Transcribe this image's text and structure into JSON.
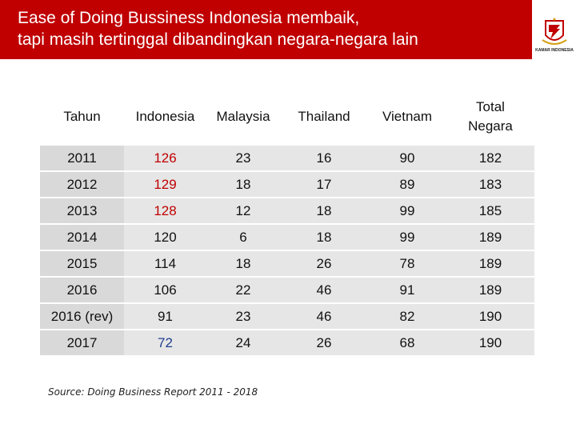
{
  "slide": {
    "title_line1": "Ease  of Doing Bussiness Indonesia membaik,",
    "title_line2": "tapi masih tertinggal dibandingkan negara-negara lain",
    "logo_text": "KAMAR INDONESIA",
    "header_color": "#c00000"
  },
  "table": {
    "headers": [
      "Tahun",
      "Indonesia",
      "Malaysia",
      "Thailand",
      "Vietnam",
      "Total Negara"
    ],
    "rows": [
      [
        "2011",
        "126",
        "23",
        "16",
        "90",
        "182"
      ],
      [
        "2012",
        "129",
        "18",
        "17",
        "89",
        "183"
      ],
      [
        "2013",
        "128",
        "12",
        "18",
        "99",
        "185"
      ],
      [
        "2014",
        "120",
        "6",
        "18",
        "99",
        "189"
      ],
      [
        "2015",
        "114",
        "18",
        "26",
        "78",
        "189"
      ],
      [
        "2016",
        "106",
        "22",
        "46",
        "91",
        "189"
      ],
      [
        "2016 (rev)",
        "91",
        "23",
        "46",
        "82",
        "190"
      ],
      [
        "2017",
        "72",
        "24",
        "26",
        "68",
        "190"
      ]
    ],
    "indonesia_red_rows": [
      0,
      1,
      2
    ],
    "indonesia_blue_rows": [
      7
    ],
    "highlight_red": "#c00000",
    "highlight_blue": "#1f3f8f"
  },
  "source": "Source: Doing Business Report 2011 - 2018"
}
